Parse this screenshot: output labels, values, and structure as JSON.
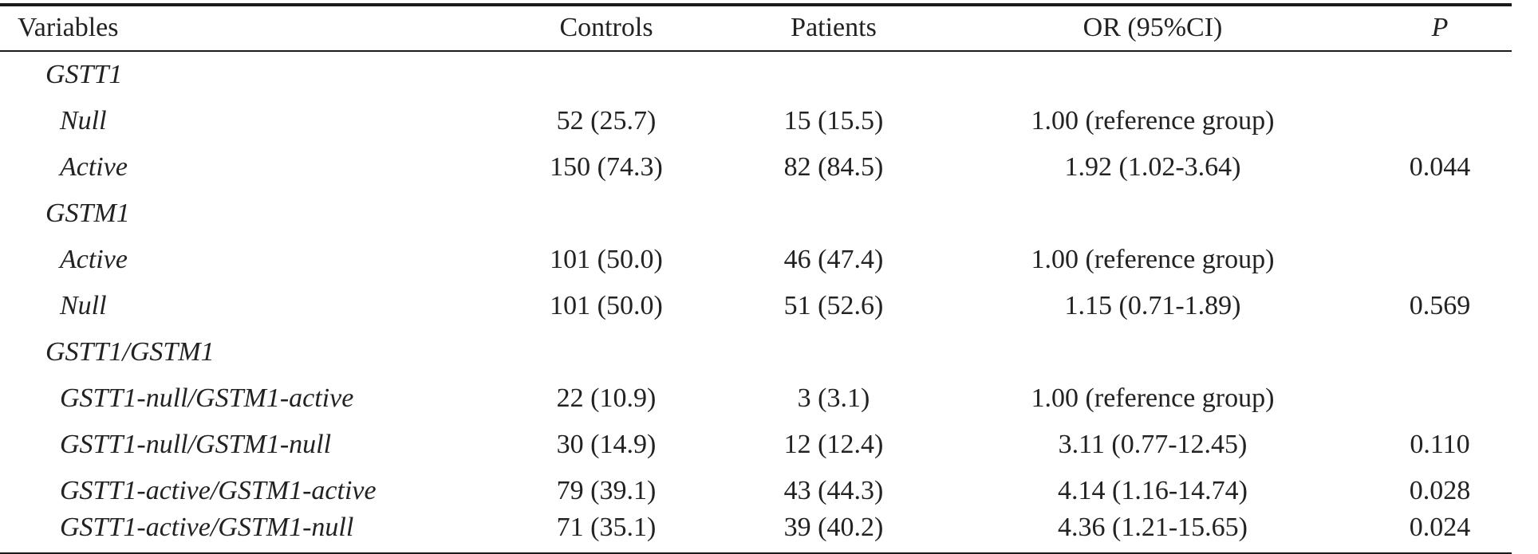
{
  "header": {
    "variables": "Variables",
    "controls": "Controls",
    "patients": "Patients",
    "or": "OR (95%CI)",
    "p": "P"
  },
  "groups": [
    {
      "label": "GSTT1",
      "rows": [
        {
          "label": "Null",
          "controls": "52 (25.7)",
          "patients": "15 (15.5)",
          "or": "1.00 (reference group)",
          "p": ""
        },
        {
          "label": "Active",
          "controls": "150 (74.3)",
          "patients": "82 (84.5)",
          "or": "1.92 (1.02-3.64)",
          "p": "0.044"
        }
      ]
    },
    {
      "label": "GSTM1",
      "rows": [
        {
          "label": "Active",
          "controls": "101 (50.0)",
          "patients": "46 (47.4)",
          "or": "1.00 (reference group)",
          "p": ""
        },
        {
          "label": "Null",
          "controls": "101 (50.0)",
          "patients": "51 (52.6)",
          "or": "1.15 (0.71-1.89)",
          "p": "0.569"
        }
      ]
    },
    {
      "label": "GSTT1/GSTM1",
      "rows": [
        {
          "label": "GSTT1-null/GSTM1-active",
          "controls": "22 (10.9)",
          "patients": "3 (3.1)",
          "or": "1.00 (reference group)",
          "p": ""
        },
        {
          "label": "GSTT1-null/GSTM1-null",
          "controls": "30 (14.9)",
          "patients": "12 (12.4)",
          "or": "3.11 (0.77-12.45)",
          "p": "0.110"
        },
        {
          "label": "GSTT1-active/GSTM1-active",
          "controls": "79 (39.1)",
          "patients": "43 (44.3)",
          "or": "4.14 (1.16-14.74)",
          "p": "0.028"
        },
        {
          "label": "GSTT1-active/GSTM1-null",
          "controls": "71 (35.1)",
          "patients": "39 (40.2)",
          "or": "4.36 (1.21-15.65)",
          "p": "0.024"
        }
      ]
    }
  ]
}
